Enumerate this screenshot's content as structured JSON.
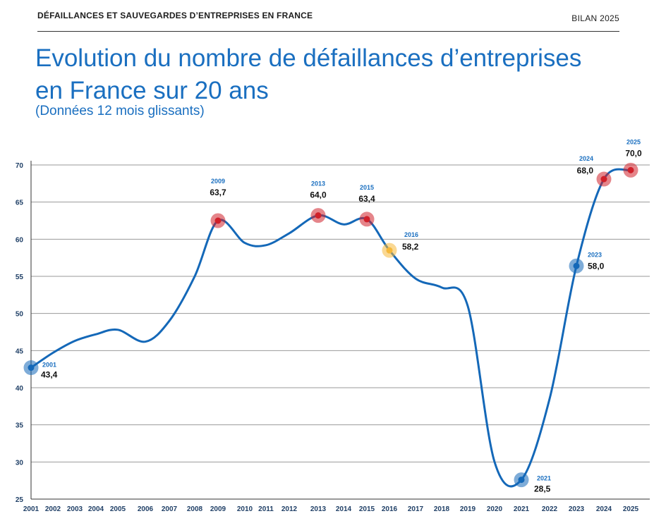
{
  "header": {
    "left": "DÉFAILLANCES ET SAUVEGARDES D’ENTREPRISES EN FRANCE",
    "right": "BILAN 2025"
  },
  "title": "Evolution du nombre de défaillances d’entreprises en France sur 20 ans",
  "subtitle": "(Données 12 mois glissants)",
  "colors": {
    "line": "#1468b8",
    "grid": "#9a9a9a",
    "peak": "#d0202a",
    "trough": "#1468b8",
    "highlight": "#f5b83a"
  },
  "chart_data": {
    "type": "line",
    "title": "Evolution du nombre de défaillances d’entreprises en France sur 20 ans",
    "subtitle": "(Données 12 mois glissants)",
    "xlabel": "",
    "ylabel": "",
    "ylim": [
      25,
      70
    ],
    "yticks": [
      25,
      30,
      35,
      40,
      45,
      50,
      55,
      60,
      65,
      70
    ],
    "grid": true,
    "x_ticks": [
      "2001",
      "2002",
      "2003",
      "2004",
      "2005",
      "2006",
      "2007",
      "2008",
      "2009",
      "2010",
      "2011",
      "2012",
      "2013",
      "2014",
      "2015",
      "2016",
      "2017",
      "2018",
      "2019",
      "2020",
      "2021",
      "2022",
      "2023",
      "2024",
      "2025"
    ],
    "series": [
      {
        "x": [
          2001,
          2002,
          2003,
          2004,
          2005,
          2006,
          2007,
          2008,
          2009,
          2010,
          2011,
          2012,
          2013,
          2014,
          2015,
          2016,
          2017,
          2018,
          2019,
          2020,
          2021,
          2022,
          2023,
          2024,
          2025
        ],
        "values": [
          42.7,
          44.7,
          46.3,
          47.2,
          47.8,
          46.2,
          49.0,
          55.0,
          62.5,
          59.5,
          59.2,
          60.8,
          63.2,
          62.0,
          62.7,
          58.5,
          54.7,
          53.5,
          51.0,
          30.0,
          27.6,
          38.5,
          56.4,
          68.1,
          69.3
        ]
      }
    ],
    "annotations": [
      {
        "year": "2001",
        "value": "43,4",
        "x": 2001,
        "y": 42.7,
        "kind": "trough"
      },
      {
        "year": "2009",
        "value": "63,7",
        "x": 2009,
        "y": 62.5,
        "kind": "peak"
      },
      {
        "year": "2013",
        "value": "64,0",
        "x": 2013,
        "y": 63.2,
        "kind": "peak"
      },
      {
        "year": "2015",
        "value": "63,4",
        "x": 2015,
        "y": 62.7,
        "kind": "peak"
      },
      {
        "year": "2016",
        "value": "58,2",
        "x": 2016,
        "y": 58.5,
        "kind": "highlight"
      },
      {
        "year": "2021",
        "value": "28,5",
        "x": 2021,
        "y": 27.6,
        "kind": "trough"
      },
      {
        "year": "2023",
        "value": "58,0",
        "x": 2023,
        "y": 56.4,
        "kind": "trough"
      },
      {
        "year": "2024",
        "value": "68,0",
        "x": 2024,
        "y": 68.1,
        "kind": "peak"
      },
      {
        "year": "2025",
        "value": "70,0",
        "x": 2025,
        "y": 69.3,
        "kind": "peak"
      }
    ]
  }
}
